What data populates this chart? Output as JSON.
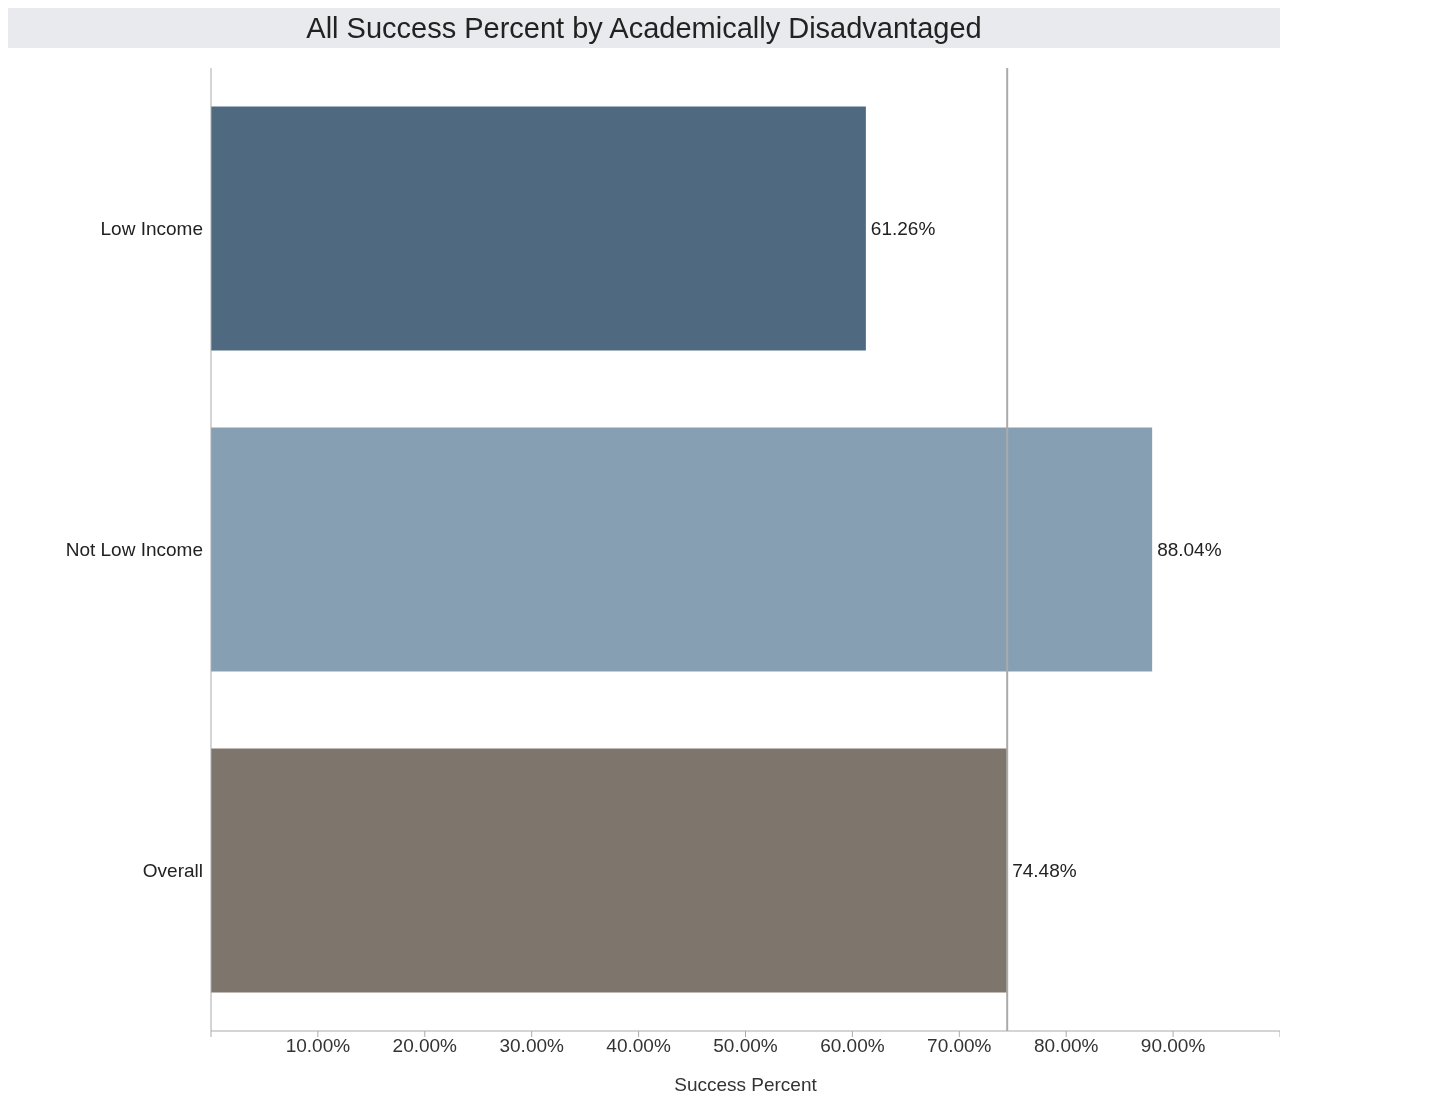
{
  "chart_data": {
    "type": "bar",
    "orientation": "horizontal",
    "title": "All Success Percent by Academically Disadvantaged",
    "xlabel": "Success Percent",
    "categories": [
      "Low Income",
      "Not Low Income",
      "Overall"
    ],
    "values": [
      61.26,
      88.04,
      74.48
    ],
    "colors": [
      "#4f6a80",
      "#879fb3",
      "#7e756c"
    ],
    "value_labels": [
      "61.26%",
      "88.04%",
      "74.48%"
    ],
    "xlim": [
      0,
      100
    ],
    "xticks": [
      {
        "value": 0,
        "label": null
      },
      {
        "value": 10,
        "label": "10.00%"
      },
      {
        "value": 20,
        "label": "20.00%"
      },
      {
        "value": 30,
        "label": "30.00%"
      },
      {
        "value": 40,
        "label": "40.00%"
      },
      {
        "value": 50,
        "label": "50.00%"
      },
      {
        "value": 60,
        "label": "60.00%"
      },
      {
        "value": 70,
        "label": "70.00%"
      },
      {
        "value": 80,
        "label": "80.00%"
      },
      {
        "value": 90,
        "label": "90.00%"
      },
      {
        "value": 100,
        "label": null
      }
    ],
    "ref_lines": [
      {
        "axis": "x",
        "value": 74.48,
        "label": null,
        "color": "#aaaaaa"
      }
    ]
  }
}
